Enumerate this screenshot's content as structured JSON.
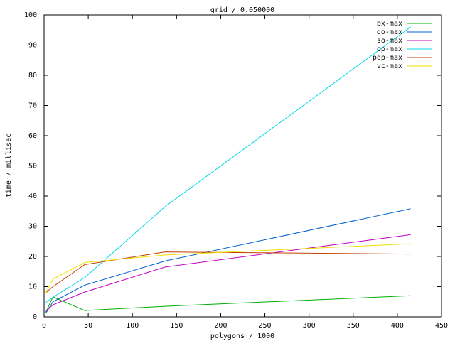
{
  "chart_data": {
    "type": "line",
    "title": "grid / 0.050000",
    "x_label": "polygons / 1000",
    "y_label": "time / millisec",
    "x": [
      2,
      10,
      46,
      137,
      415
    ],
    "series": [
      {
        "name": "bx-max",
        "color": "#00b000",
        "values": [
          1.5,
          6.6,
          2.1,
          3.5,
          7.0
        ]
      },
      {
        "name": "do-max",
        "color": "#0060d0",
        "values": [
          1.2,
          5.0,
          10.5,
          18.5,
          35.8
        ]
      },
      {
        "name": "so-max",
        "color": "#c000c0",
        "values": [
          1.8,
          4.0,
          8.2,
          16.5,
          27.2
        ]
      },
      {
        "name": "op-max",
        "color": "#00d8e8",
        "values": [
          4.8,
          6.5,
          13.0,
          36.5,
          96.0
        ]
      },
      {
        "name": "pqp-max",
        "color": "#c04000",
        "values": [
          8.0,
          10.0,
          17.3,
          21.5,
          20.8
        ]
      },
      {
        "name": "vc-max",
        "color": "#f0e000",
        "values": [
          8.0,
          12.5,
          18.0,
          20.5,
          24.2
        ]
      }
    ],
    "xlim": [
      0,
      450
    ],
    "xticks": [
      0,
      50,
      100,
      150,
      200,
      250,
      300,
      350,
      400,
      450
    ],
    "ylim": [
      0,
      100
    ],
    "yticks": [
      0,
      10,
      20,
      30,
      40,
      50,
      60,
      70,
      80,
      90,
      100
    ],
    "legend": "top right",
    "grid": false
  }
}
